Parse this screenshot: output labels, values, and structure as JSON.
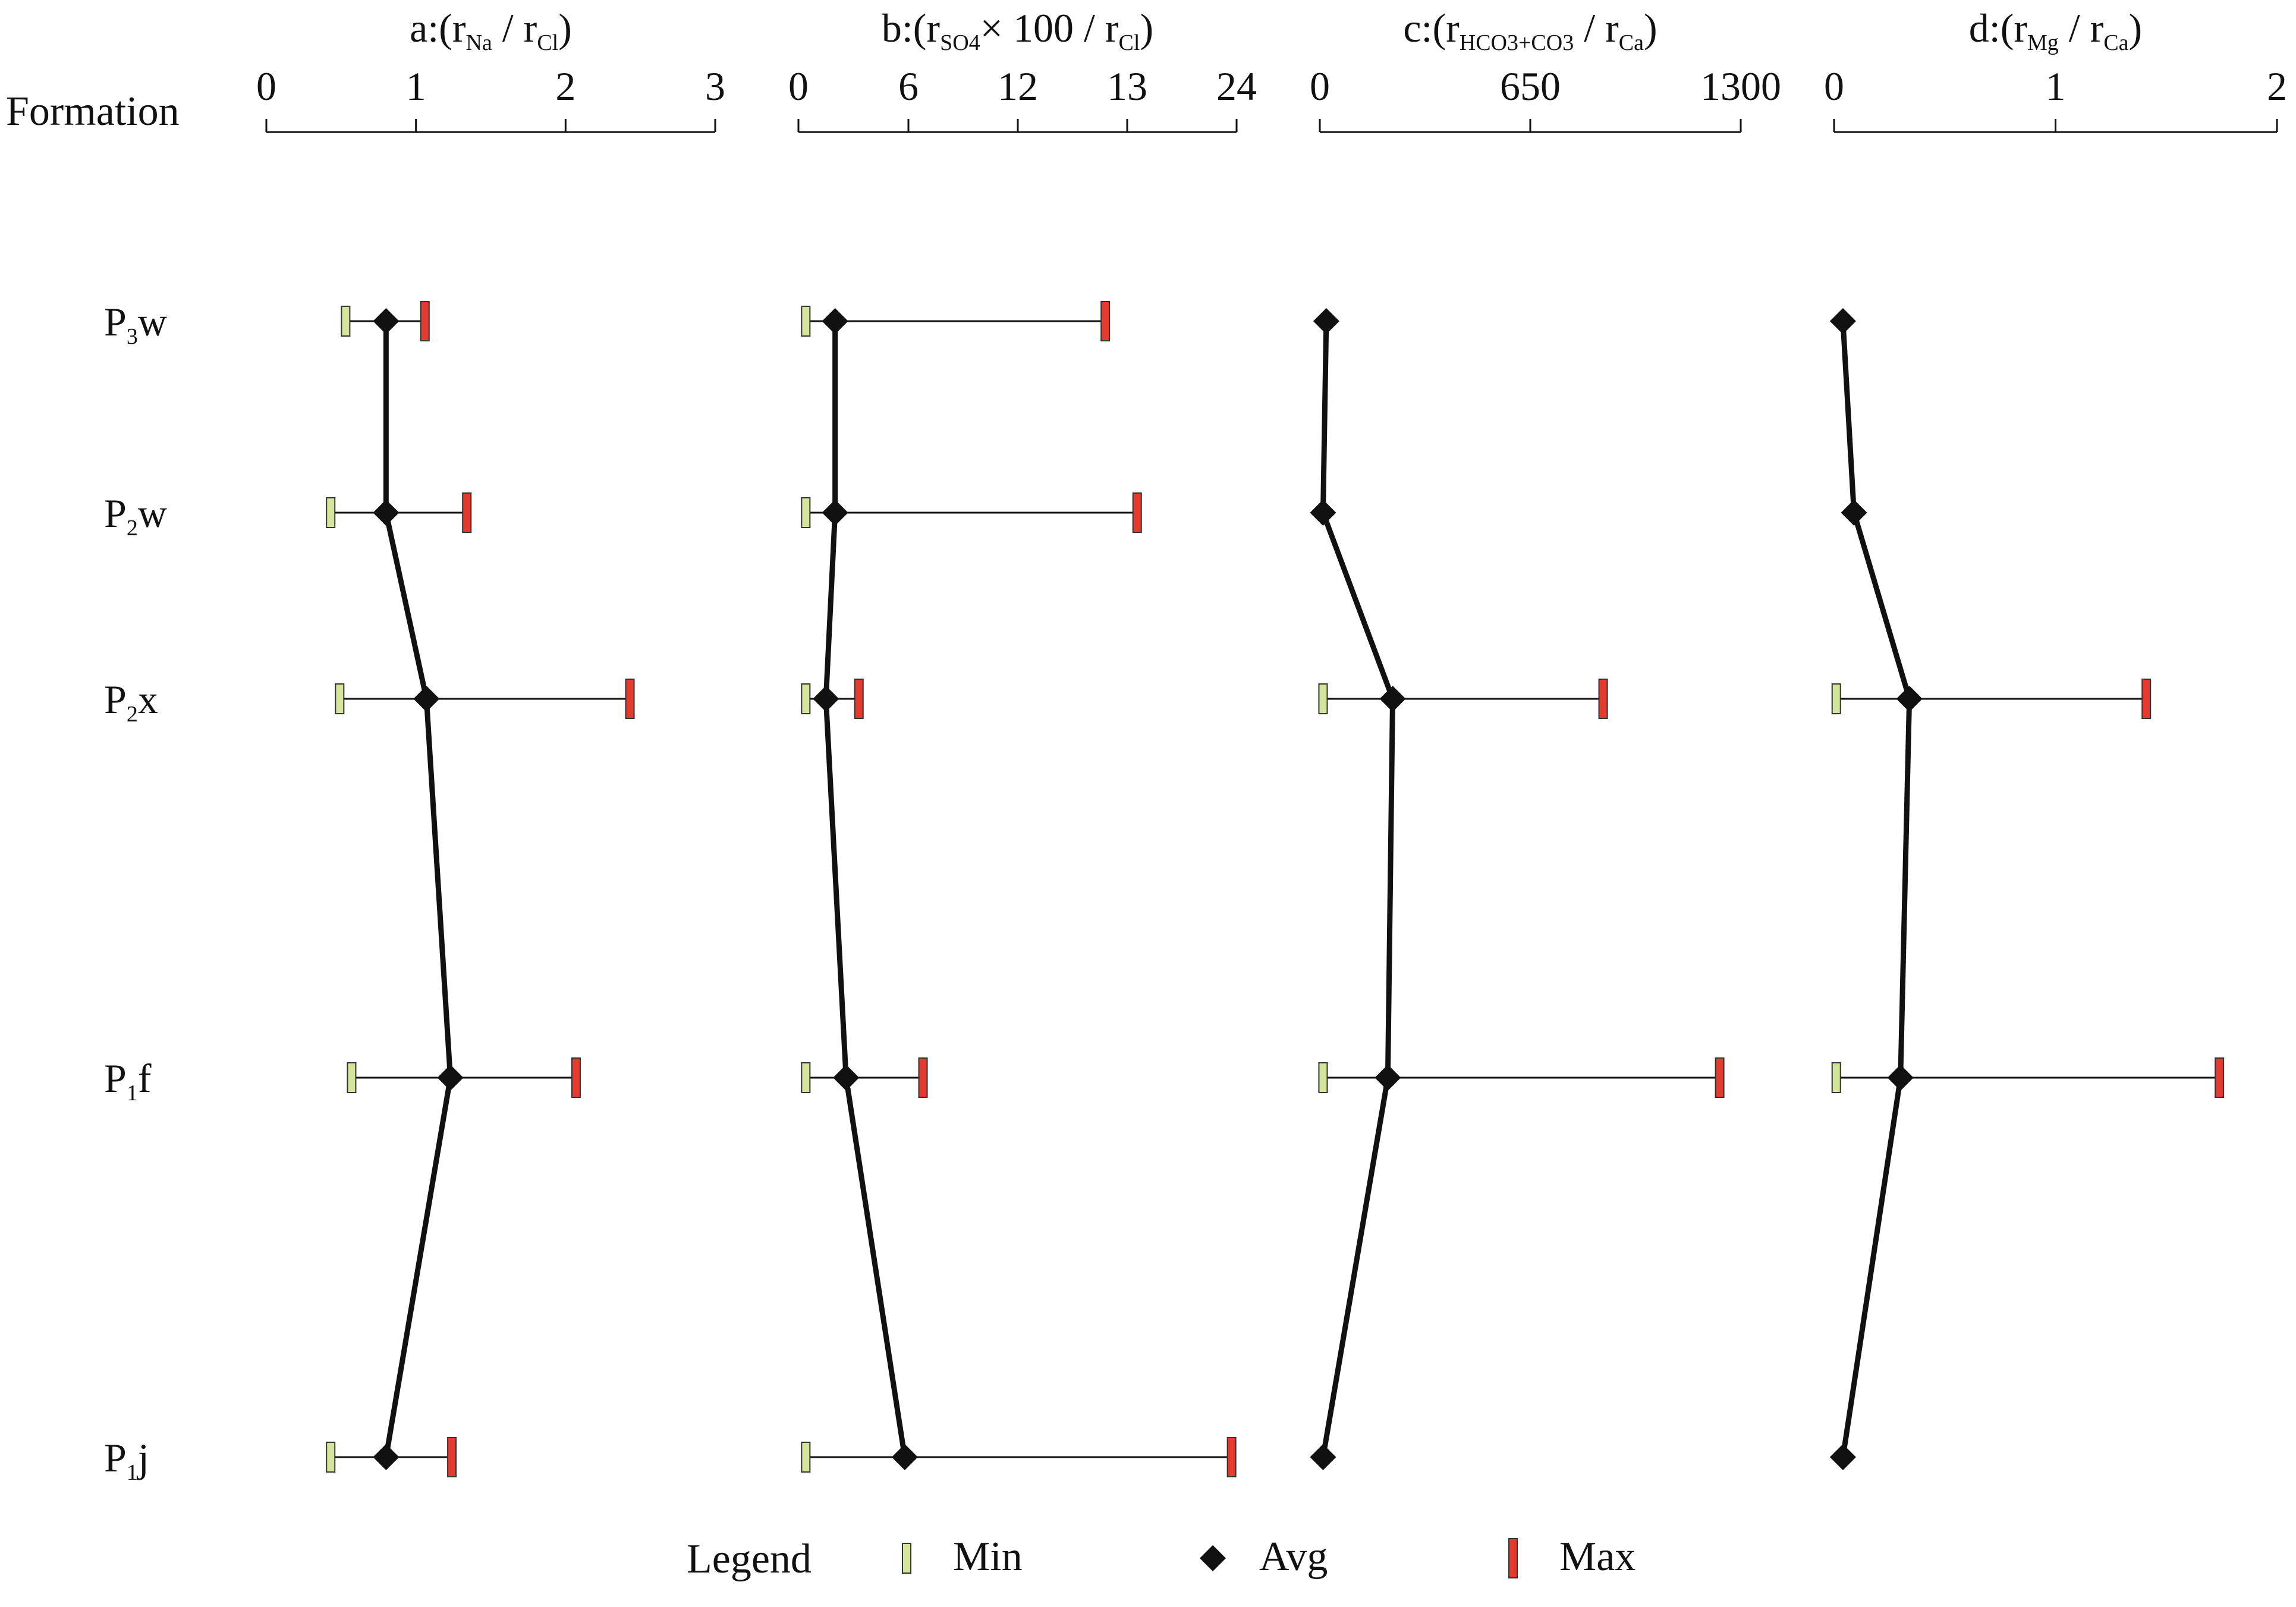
{
  "chart_data": {
    "type": "range-profile",
    "y_header": "Formation",
    "formations": [
      {
        "id": "P3w",
        "main": "P",
        "sub": "3",
        "suffix": "w"
      },
      {
        "id": "P2w",
        "main": "P",
        "sub": "2",
        "suffix": "w"
      },
      {
        "id": "P2x",
        "main": "P",
        "sub": "2",
        "suffix": "x"
      },
      {
        "id": "P1f",
        "main": "P",
        "sub": "1",
        "suffix": "f"
      },
      {
        "id": "P1j",
        "main": "P",
        "sub": "1",
        "suffix": "j"
      }
    ],
    "panels": [
      {
        "id": "a",
        "title_parts": [
          {
            "t": "a:(r"
          },
          {
            "t": "Na",
            "sub": true
          },
          {
            "t": " / r"
          },
          {
            "t": "Cl",
            "sub": true
          },
          {
            "t": ")"
          }
        ],
        "ticks": [
          {
            "label": "0",
            "value": 0
          },
          {
            "label": "1",
            "value": 1
          },
          {
            "label": "2",
            "value": 2
          },
          {
            "label": "3",
            "value": 3
          }
        ],
        "scale": "linear",
        "min": [
          0.53,
          0.43,
          0.49,
          0.57,
          0.43
        ],
        "avg": [
          0.8,
          0.8,
          1.07,
          1.23,
          0.8
        ],
        "max": [
          1.06,
          1.34,
          2.43,
          2.07,
          1.24
        ]
      },
      {
        "id": "b",
        "title_parts": [
          {
            "t": "b:(r"
          },
          {
            "t": "SO",
            "sub": true
          },
          {
            "t": "4",
            "sub2": true
          },
          {
            "t": "× 100 / r"
          },
          {
            "t": "Cl",
            "sub": true
          },
          {
            "t": ")"
          }
        ],
        "ticks": [
          {
            "label": "0",
            "value": 0
          },
          {
            "label": "6",
            "value": 6
          },
          {
            "label": "12",
            "value": 12
          },
          {
            "label": "13",
            "value": 13
          },
          {
            "label": "24",
            "value": 24
          }
        ],
        "scale": "piecewise",
        "min": [
          0.4,
          0.4,
          0.4,
          0.4,
          0.4
        ],
        "avg": [
          2.0,
          2.0,
          1.5,
          2.6,
          5.8
        ],
        "max": [
          12.8,
          14.0,
          3.3,
          6.8,
          23.5
        ]
      },
      {
        "id": "c",
        "title_parts": [
          {
            "t": "c:(r"
          },
          {
            "t": "HCO",
            "sub": true
          },
          {
            "t": "3",
            "sub2": true
          },
          {
            "t": "+CO",
            "sub": true
          },
          {
            "t": "3",
            "sub2": true
          },
          {
            "t": " / r"
          },
          {
            "t": "Ca",
            "sub": true
          },
          {
            "t": ")"
          }
        ],
        "ticks": [
          {
            "label": "0",
            "value": 0
          },
          {
            "label": "650",
            "value": 650
          },
          {
            "label": "1300",
            "value": 1300
          }
        ],
        "scale": "linear",
        "min": [
          null,
          null,
          10,
          10,
          null
        ],
        "avg": [
          20,
          10,
          225,
          210,
          10
        ],
        "max": [
          null,
          null,
          875,
          1235,
          null
        ]
      },
      {
        "id": "d",
        "title_parts": [
          {
            "t": "d:(r"
          },
          {
            "t": "Mg",
            "sub": true
          },
          {
            "t": " / r"
          },
          {
            "t": "Ca",
            "sub": true
          },
          {
            "t": ")"
          }
        ],
        "ticks": [
          {
            "label": "0",
            "value": 0
          },
          {
            "label": "1",
            "value": 1
          },
          {
            "label": "2",
            "value": 2
          }
        ],
        "scale": "linear",
        "min": [
          null,
          null,
          0.01,
          0.01,
          null
        ],
        "avg": [
          0.04,
          0.09,
          0.34,
          0.3,
          0.04
        ],
        "max": [
          null,
          null,
          1.41,
          1.74,
          null
        ]
      }
    ],
    "legend": {
      "title": "Legend",
      "items": [
        {
          "key": "min",
          "label": "Min"
        },
        {
          "key": "avg",
          "label": "Avg"
        },
        {
          "key": "max",
          "label": "Max"
        }
      ]
    },
    "colors": {
      "min_fill": "#d4e49a",
      "avg_fill": "#111111",
      "max_fill": "#e53a2e",
      "line": "#111111"
    }
  }
}
